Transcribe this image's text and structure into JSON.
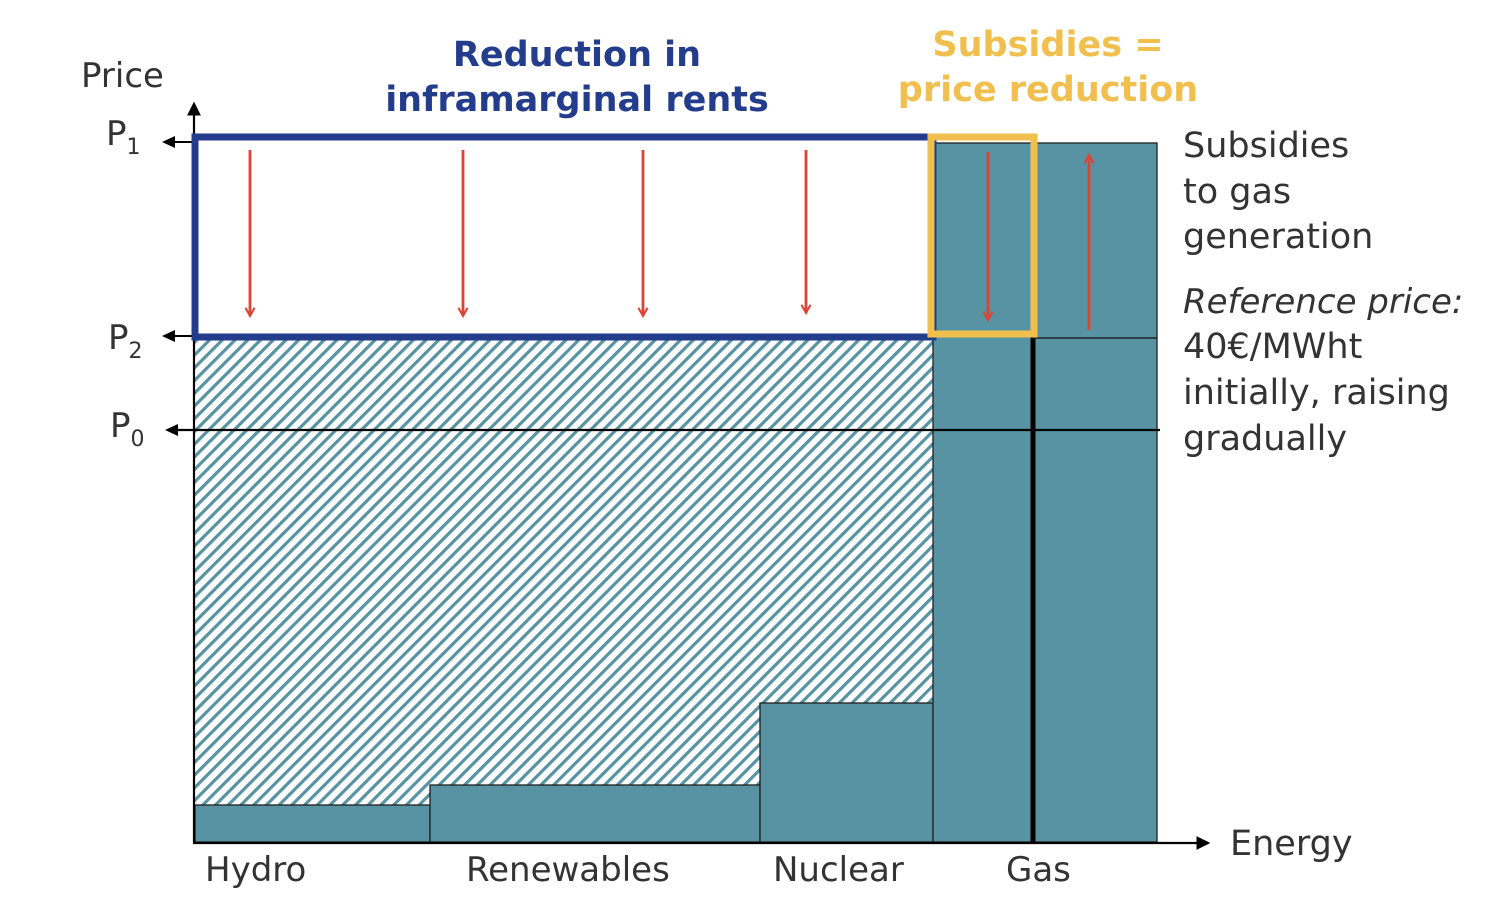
{
  "axes": {
    "y_label": "Price",
    "x_label": "Energy",
    "price_levels": [
      {
        "key": "P1",
        "base": "P",
        "sub": "1"
      },
      {
        "key": "P2",
        "base": "P",
        "sub": "2"
      },
      {
        "key": "P0",
        "base": "P",
        "sub": "0"
      }
    ]
  },
  "categories": [
    "Hydro",
    "Renewables",
    "Nuclear",
    "Gas"
  ],
  "headlines": {
    "rents": [
      "Reduction in",
      "inframarginal rents"
    ],
    "subsidies": [
      "Subsidies =",
      "price reduction"
    ]
  },
  "side_note": {
    "subsidies": [
      "Subsidies",
      "to gas",
      "generation"
    ],
    "reference_heading": "Reference price:",
    "reference_lines": [
      "40€/MWht",
      "initially, raising",
      "gradually"
    ]
  },
  "colors": {
    "bar": "#5793a3",
    "rent_box": "#233d8c",
    "subsidy_box": "#f0bf4e",
    "arrow": "#dd4433",
    "hatch": "#5793a3"
  }
}
